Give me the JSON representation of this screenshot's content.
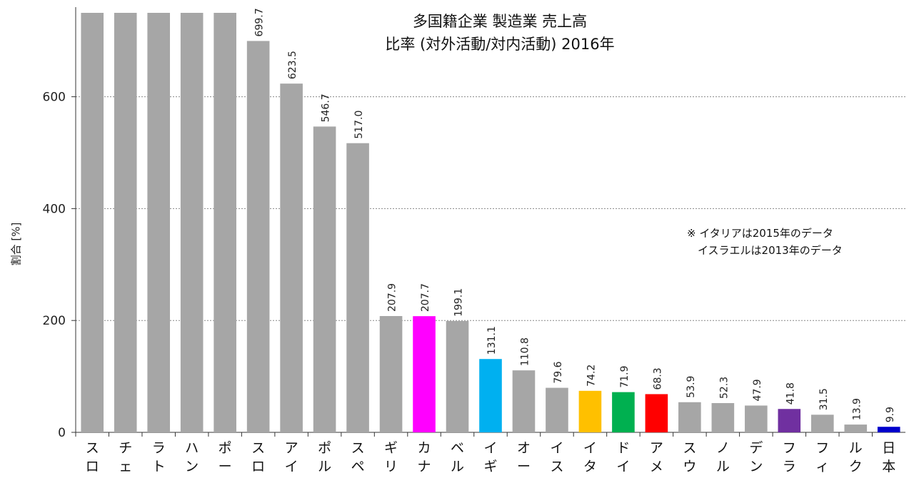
{
  "chart_data": {
    "type": "bar",
    "title": "多国籍企業 製造業 売上高",
    "subtitle": "比率 (対外活動/対内活動) 2016年",
    "ylabel": "割合 [%]",
    "xlabel": "",
    "ylim": [
      0,
      750
    ],
    "yticks": [
      0,
      200,
      400,
      600
    ],
    "grid": true,
    "note_lines": [
      "※ イタリアは2015年のデータ",
      "　イスラエルは2013年のデータ"
    ],
    "categories": [
      "スロバ",
      "チェコ",
      "ラトビ",
      "ハンガ",
      "ポーラ",
      "スロベ",
      "アイル",
      "ポルト",
      "スペイ",
      "ギリシ",
      "カナダ",
      "ベルギ",
      "イギリ",
      "オース",
      "イスラ",
      "イタリ",
      "ドイツ",
      "アメリ",
      "スウェ",
      "ノルウ",
      "デンマ",
      "フラン",
      "フィン",
      "ルクセ",
      "日本"
    ],
    "values": [
      750,
      750,
      750,
      750,
      750,
      699.7,
      623.5,
      546.7,
      517.0,
      207.9,
      207.7,
      199.1,
      131.1,
      110.8,
      79.6,
      74.2,
      71.9,
      68.3,
      53.9,
      52.3,
      47.9,
      41.8,
      31.5,
      13.9,
      9.9
    ],
    "value_labels": [
      "",
      "",
      "",
      "",
      "",
      "699.7",
      "623.5",
      "546.7",
      "517.0",
      "207.9",
      "207.7",
      "199.1",
      "131.1",
      "110.8",
      "79.6",
      "74.2",
      "71.9",
      "68.3",
      "53.9",
      "52.3",
      "47.9",
      "41.8",
      "31.5",
      "13.9",
      "9.9"
    ],
    "colors": [
      "#a6a6a6",
      "#a6a6a6",
      "#a6a6a6",
      "#a6a6a6",
      "#a6a6a6",
      "#a6a6a6",
      "#a6a6a6",
      "#a6a6a6",
      "#a6a6a6",
      "#a6a6a6",
      "#ff00ff",
      "#a6a6a6",
      "#00b0f0",
      "#a6a6a6",
      "#a6a6a6",
      "#ffc000",
      "#00b050",
      "#ff0000",
      "#a6a6a6",
      "#a6a6a6",
      "#a6a6a6",
      "#7030a0",
      "#a6a6a6",
      "#a6a6a6",
      "#0000cc"
    ]
  }
}
